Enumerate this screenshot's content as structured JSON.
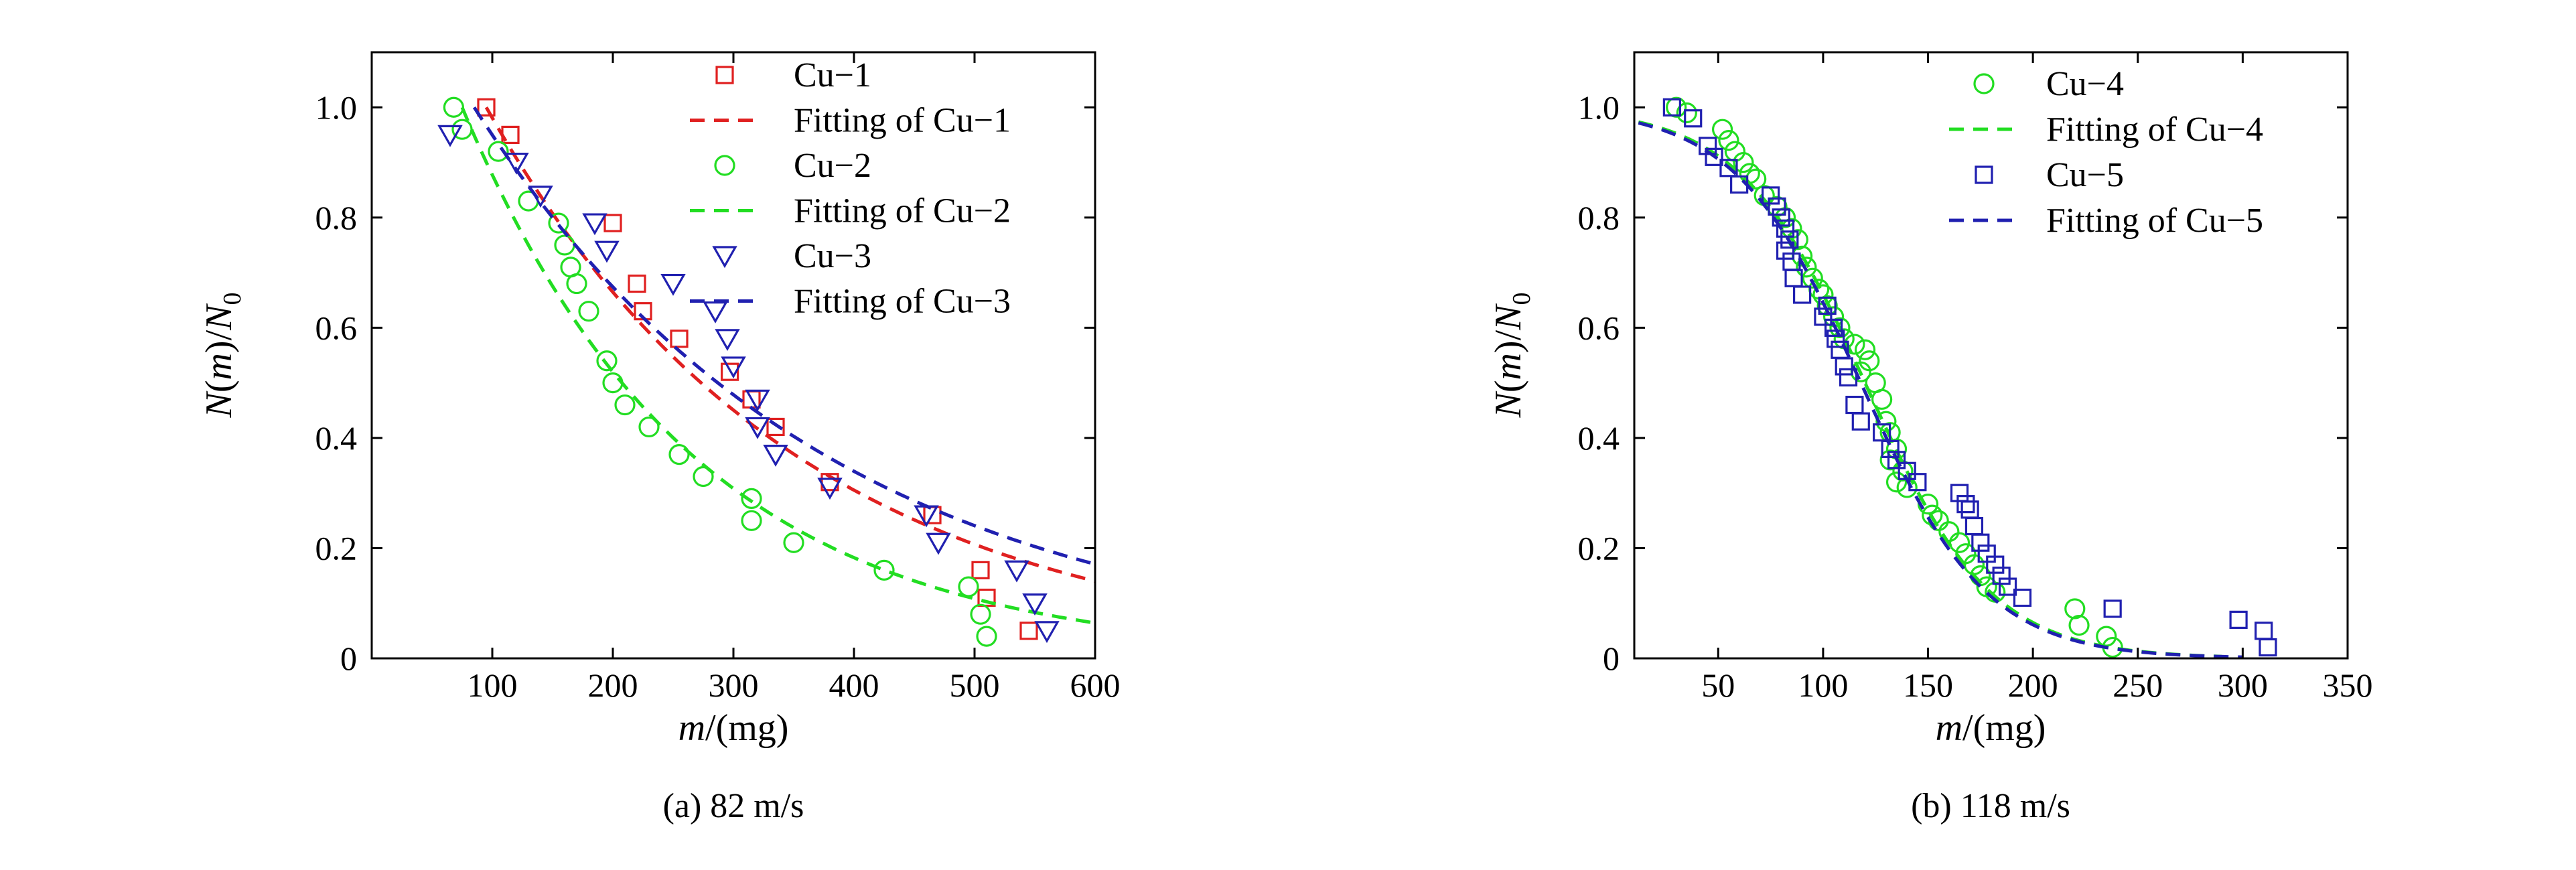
{
  "colors": {
    "red": "#e02020",
    "green": "#22dd22",
    "blue": "#2020b0"
  },
  "chart_data": [
    {
      "type": "scatter",
      "caption": "(a) 82 m/s",
      "xlabel": "m/(mg)",
      "ylabel": "N(m)/N_0",
      "xlim": [
        0,
        600
      ],
      "ylim": [
        0,
        1.1
      ],
      "xticks": [
        {
          "v": 100,
          "label": "100"
        },
        {
          "v": 200,
          "label": "200"
        },
        {
          "v": 300,
          "label": "300"
        },
        {
          "v": 400,
          "label": "400"
        },
        {
          "v": 500,
          "label": "500"
        },
        {
          "v": 600,
          "label": "600"
        }
      ],
      "yticks": [
        {
          "v": 0,
          "label": "0"
        },
        {
          "v": 0.2,
          "label": "0.2"
        },
        {
          "v": 0.4,
          "label": "0.4"
        },
        {
          "v": 0.6,
          "label": "0.6"
        },
        {
          "v": 0.8,
          "label": "0.8"
        },
        {
          "v": 1.0,
          "label": "1.0"
        }
      ],
      "legend_position": "top-right",
      "series": [
        {
          "name": "Cu−1",
          "marker": "square",
          "color": "red",
          "points": [
            [
              95,
              1.0
            ],
            [
              115,
              0.95
            ],
            [
              200,
              0.79
            ],
            [
              220,
              0.68
            ],
            [
              225,
              0.63
            ],
            [
              255,
              0.58
            ],
            [
              297,
              0.52
            ],
            [
              315,
              0.47
            ],
            [
              335,
              0.42
            ],
            [
              380,
              0.32
            ],
            [
              465,
              0.26
            ],
            [
              505,
              0.16
            ],
            [
              510,
              0.11
            ],
            [
              545,
              0.05
            ]
          ]
        },
        {
          "name": "Fitting of Cu−1",
          "line": "dashed",
          "color": "red",
          "fit": {
            "kind": "exp",
            "x0": 95,
            "y0": 1.0,
            "k": 0.00389,
            "xmin": 95,
            "xmax": 600
          }
        },
        {
          "name": "Cu−2",
          "marker": "circle",
          "color": "green",
          "points": [
            [
              68,
              1.0
            ],
            [
              75,
              0.96
            ],
            [
              105,
              0.92
            ],
            [
              130,
              0.83
            ],
            [
              155,
              0.79
            ],
            [
              160,
              0.75
            ],
            [
              165,
              0.71
            ],
            [
              170,
              0.68
            ],
            [
              180,
              0.63
            ],
            [
              195,
              0.54
            ],
            [
              200,
              0.5
            ],
            [
              210,
              0.46
            ],
            [
              230,
              0.42
            ],
            [
              255,
              0.37
            ],
            [
              275,
              0.33
            ],
            [
              315,
              0.29
            ],
            [
              315,
              0.25
            ],
            [
              350,
              0.21
            ],
            [
              425,
              0.16
            ],
            [
              495,
              0.13
            ],
            [
              505,
              0.08
            ],
            [
              510,
              0.04
            ]
          ]
        },
        {
          "name": "Fitting of Cu−2",
          "line": "dashed",
          "color": "green",
          "fit": {
            "kind": "exp",
            "x0": 75,
            "y0": 1.0,
            "k": 0.00523,
            "xmin": 75,
            "xmax": 600
          }
        },
        {
          "name": "Cu−3",
          "marker": "triangle-down",
          "color": "blue",
          "points": [
            [
              65,
              0.95
            ],
            [
              120,
              0.9
            ],
            [
              140,
              0.84
            ],
            [
              185,
              0.79
            ],
            [
              195,
              0.74
            ],
            [
              250,
              0.68
            ],
            [
              285,
              0.63
            ],
            [
              295,
              0.58
            ],
            [
              300,
              0.53
            ],
            [
              320,
              0.47
            ],
            [
              320,
              0.42
            ],
            [
              335,
              0.37
            ],
            [
              380,
              0.31
            ],
            [
              460,
              0.26
            ],
            [
              470,
              0.21
            ],
            [
              535,
              0.16
            ],
            [
              550,
              0.1
            ],
            [
              560,
              0.05
            ]
          ]
        },
        {
          "name": "Fitting of Cu−3",
          "line": "dashed",
          "color": "blue",
          "fit": {
            "kind": "exp",
            "x0": 85,
            "y0": 1.0,
            "k": 0.00343,
            "xmin": 85,
            "xmax": 600
          }
        }
      ]
    },
    {
      "type": "scatter",
      "caption": "(b) 118 m/s",
      "xlabel": "m/(mg)",
      "ylabel": "N(m)/N_0",
      "xlim": [
        10,
        350
      ],
      "ylim": [
        0,
        1.1
      ],
      "xticks": [
        {
          "v": 50,
          "label": "50"
        },
        {
          "v": 100,
          "label": "100"
        },
        {
          "v": 150,
          "label": "150"
        },
        {
          "v": 200,
          "label": "200"
        },
        {
          "v": 250,
          "label": "250"
        },
        {
          "v": 300,
          "label": "300"
        },
        {
          "v": 350,
          "label": "350"
        }
      ],
      "yticks": [
        {
          "v": 0,
          "label": "0"
        },
        {
          "v": 0.2,
          "label": "0.2"
        },
        {
          "v": 0.4,
          "label": "0.4"
        },
        {
          "v": 0.6,
          "label": "0.6"
        },
        {
          "v": 0.8,
          "label": "0.8"
        },
        {
          "v": 1.0,
          "label": "1.0"
        }
      ],
      "legend_position": "top-right",
      "series": [
        {
          "name": "Cu−4",
          "marker": "circle",
          "color": "green",
          "points": [
            [
              30,
              1.0
            ],
            [
              35,
              0.99
            ],
            [
              52,
              0.96
            ],
            [
              55,
              0.94
            ],
            [
              58,
              0.92
            ],
            [
              62,
              0.9
            ],
            [
              65,
              0.88
            ],
            [
              68,
              0.87
            ],
            [
              72,
              0.84
            ],
            [
              78,
              0.82
            ],
            [
              82,
              0.8
            ],
            [
              85,
              0.78
            ],
            [
              88,
              0.76
            ],
            [
              90,
              0.73
            ],
            [
              92,
              0.71
            ],
            [
              95,
              0.69
            ],
            [
              98,
              0.67
            ],
            [
              100,
              0.66
            ],
            [
              102,
              0.64
            ],
            [
              105,
              0.62
            ],
            [
              108,
              0.6
            ],
            [
              110,
              0.58
            ],
            [
              115,
              0.57
            ],
            [
              120,
              0.56
            ],
            [
              122,
              0.54
            ],
            [
              118,
              0.52
            ],
            [
              125,
              0.5
            ],
            [
              128,
              0.47
            ],
            [
              130,
              0.43
            ],
            [
              132,
              0.41
            ],
            [
              135,
              0.38
            ],
            [
              132,
              0.36
            ],
            [
              138,
              0.34
            ],
            [
              135,
              0.32
            ],
            [
              140,
              0.31
            ],
            [
              150,
              0.28
            ],
            [
              152,
              0.26
            ],
            [
              155,
              0.25
            ],
            [
              160,
              0.23
            ],
            [
              165,
              0.21
            ],
            [
              168,
              0.19
            ],
            [
              172,
              0.17
            ],
            [
              175,
              0.15
            ],
            [
              178,
              0.13
            ],
            [
              182,
              0.12
            ],
            [
              220,
              0.09
            ],
            [
              222,
              0.06
            ],
            [
              235,
              0.04
            ],
            [
              238,
              0.02
            ]
          ]
        },
        {
          "name": "Fitting of Cu−4",
          "line": "dashed",
          "color": "green",
          "fit": {
            "kind": "logistic",
            "x0": 120,
            "s": 30,
            "xmin": 12,
            "xmax": 290
          }
        },
        {
          "name": "Cu−5",
          "marker": "square",
          "color": "blue",
          "points": [
            [
              28,
              1.0
            ],
            [
              38,
              0.98
            ],
            [
              45,
              0.93
            ],
            [
              48,
              0.91
            ],
            [
              55,
              0.89
            ],
            [
              60,
              0.86
            ],
            [
              75,
              0.84
            ],
            [
              78,
              0.82
            ],
            [
              80,
              0.8
            ],
            [
              82,
              0.78
            ],
            [
              84,
              0.76
            ],
            [
              82,
              0.74
            ],
            [
              85,
              0.72
            ],
            [
              86,
              0.69
            ],
            [
              90,
              0.66
            ],
            [
              102,
              0.64
            ],
            [
              100,
              0.62
            ],
            [
              105,
              0.6
            ],
            [
              106,
              0.58
            ],
            [
              108,
              0.56
            ],
            [
              110,
              0.53
            ],
            [
              112,
              0.51
            ],
            [
              115,
              0.46
            ],
            [
              118,
              0.43
            ],
            [
              128,
              0.41
            ],
            [
              132,
              0.38
            ],
            [
              135,
              0.36
            ],
            [
              140,
              0.34
            ],
            [
              145,
              0.32
            ],
            [
              165,
              0.3
            ],
            [
              168,
              0.28
            ],
            [
              170,
              0.27
            ],
            [
              172,
              0.24
            ],
            [
              175,
              0.21
            ],
            [
              178,
              0.19
            ],
            [
              182,
              0.17
            ],
            [
              185,
              0.15
            ],
            [
              188,
              0.13
            ],
            [
              195,
              0.11
            ],
            [
              238,
              0.09
            ],
            [
              298,
              0.07
            ],
            [
              310,
              0.05
            ],
            [
              312,
              0.02
            ]
          ]
        },
        {
          "name": "Fitting of Cu−5",
          "line": "dashed",
          "color": "blue",
          "fit": {
            "kind": "logistic",
            "x0": 118,
            "s": 30,
            "xmin": 12,
            "xmax": 300
          }
        }
      ]
    }
  ]
}
